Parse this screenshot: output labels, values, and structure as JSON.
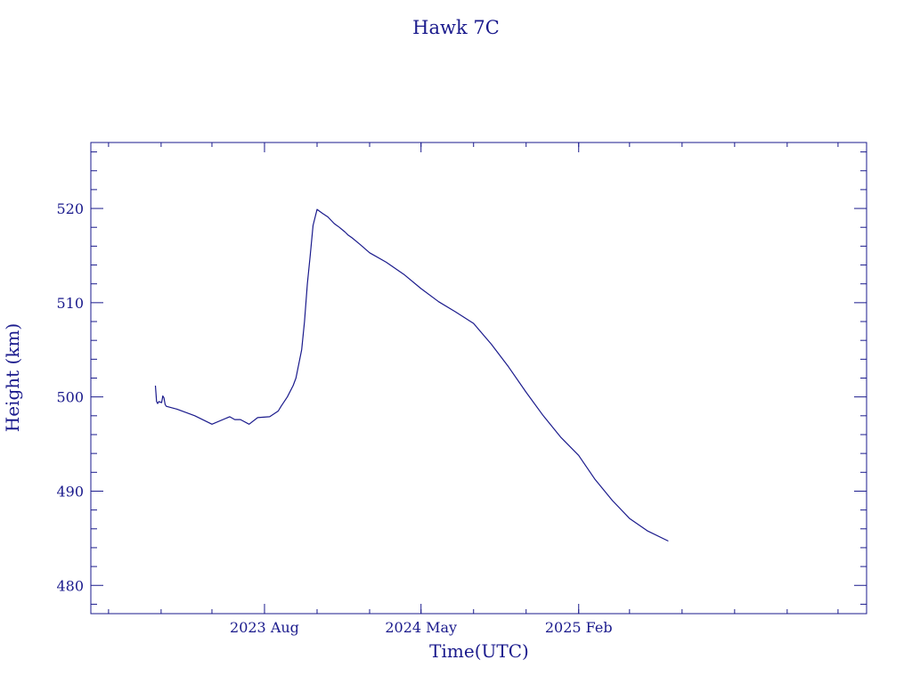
{
  "chart_data": {
    "type": "line",
    "title": "Hawk 7C",
    "xlabel": "Time(UTC)",
    "ylabel": "Height (km)",
    "ylim": [
      477,
      527
    ],
    "xlim": [
      "2022-10-01",
      "2026-06-20"
    ],
    "x_ticks": [
      {
        "date": "2023-08-01",
        "label": "2023 Aug"
      },
      {
        "date": "2024-05-01",
        "label": "2024 May"
      },
      {
        "date": "2025-02-01",
        "label": "2025 Feb"
      }
    ],
    "y_ticks": [
      480,
      490,
      500,
      510,
      520
    ],
    "grid": false,
    "legend": "none",
    "colors": {
      "line": "#1a1a8c",
      "text": "#1a1a8c",
      "background": "#ffffff"
    },
    "series": [
      {
        "x": [
          "2023-01-22",
          "2023-01-24",
          "2023-01-26",
          "2023-01-28",
          "2023-02-02",
          "2023-02-04",
          "2023-02-06",
          "2023-02-08",
          "2023-02-10",
          "2023-03-01",
          "2023-04-01",
          "2023-05-01",
          "2023-06-01",
          "2023-06-10",
          "2023-06-20",
          "2023-07-05",
          "2023-07-20",
          "2023-08-10",
          "2023-08-25",
          "2023-08-30",
          "2023-09-10",
          "2023-09-20",
          "2023-09-25",
          "2023-10-05",
          "2023-10-10",
          "2023-10-15",
          "2023-10-20",
          "2023-10-25",
          "2023-11-01",
          "2023-11-10",
          "2023-11-20",
          "2023-12-01",
          "2023-12-10",
          "2023-12-20",
          "2023-12-25",
          "2024-01-01",
          "2024-01-15",
          "2024-02-01",
          "2024-03-01",
          "2024-04-01",
          "2024-05-01",
          "2024-06-01",
          "2024-07-01",
          "2024-08-01",
          "2024-09-01",
          "2024-10-01",
          "2024-11-01",
          "2024-12-01",
          "2025-01-01",
          "2025-02-01",
          "2025-03-01",
          "2025-04-01",
          "2025-05-01",
          "2025-06-01",
          "2025-07-08"
        ],
        "y": [
          501.2,
          499.5,
          499.3,
          499.5,
          499.4,
          500.1,
          499.9,
          499.2,
          499.0,
          498.7,
          498.0,
          497.1,
          497.9,
          497.6,
          497.6,
          497.1,
          497.8,
          497.9,
          498.5,
          499.0,
          500.0,
          501.2,
          502.0,
          505.0,
          508.0,
          512.0,
          515.0,
          518.2,
          519.9,
          519.5,
          519.1,
          518.4,
          518.0,
          517.5,
          517.2,
          516.9,
          516.2,
          515.3,
          514.3,
          513.0,
          511.5,
          510.1,
          509.0,
          507.8,
          505.6,
          503.2,
          500.5,
          498.0,
          495.7,
          493.8,
          491.3,
          489.0,
          487.1,
          485.8,
          484.7
        ]
      }
    ]
  }
}
